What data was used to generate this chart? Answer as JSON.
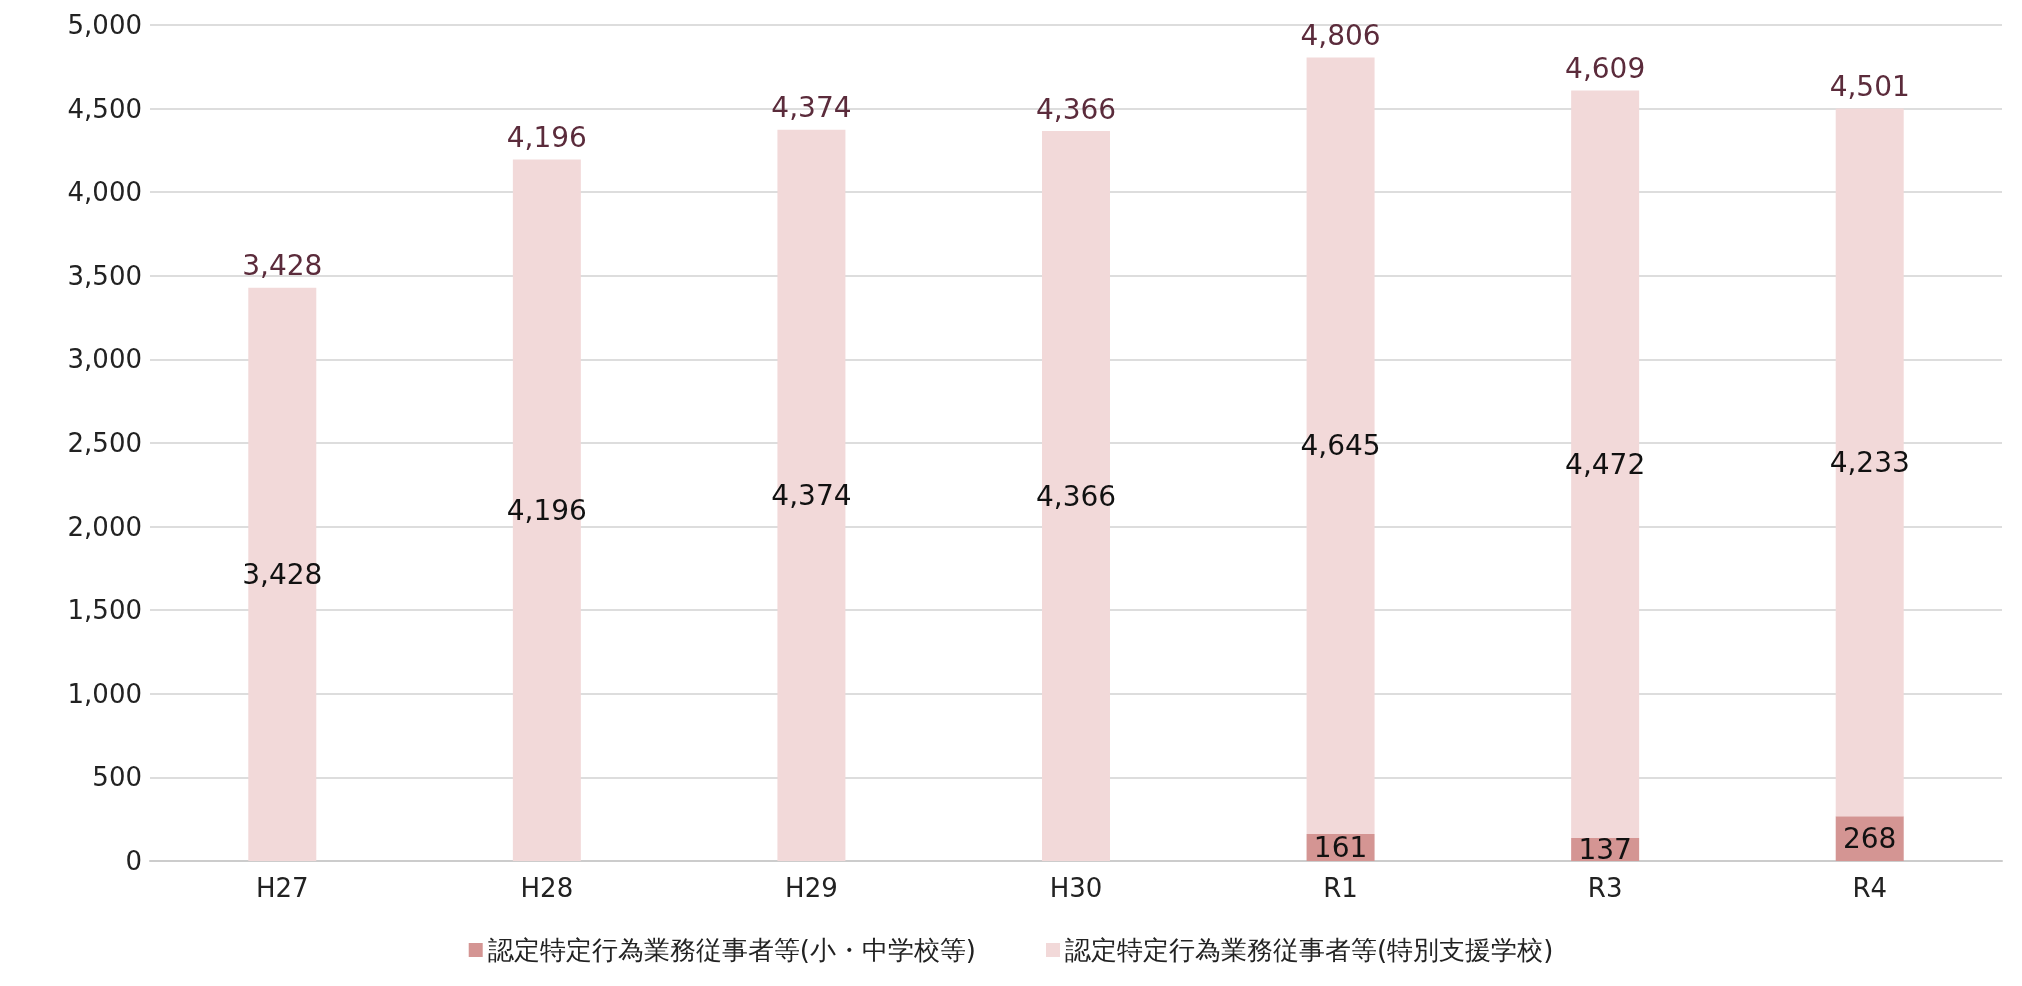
{
  "chart_data": {
    "type": "bar",
    "stacked": true,
    "categories": [
      "H27",
      "H28",
      "H29",
      "H30",
      "R1",
      "R3",
      "R4"
    ],
    "series": [
      {
        "name": "認定特定行為業務従事者等(小・中学校等)",
        "color": "#d49593",
        "values": [
          null,
          null,
          null,
          null,
          161,
          137,
          268
        ],
        "value_labels": [
          null,
          null,
          null,
          null,
          "161",
          "137",
          "268"
        ]
      },
      {
        "name": "認定特定行為業務従事者等(特別支援学校)",
        "color": "#f2d9d9",
        "values": [
          3428,
          4196,
          4374,
          4366,
          4645,
          4472,
          4233
        ],
        "value_labels": [
          "3,428",
          "4,196",
          "4,374",
          "4,366",
          "4,645",
          "4,472",
          "4,233"
        ]
      }
    ],
    "totals": [
      "3,428",
      "4,196",
      "4,374",
      "4,366",
      "4,806",
      "4,609",
      "4,501"
    ],
    "ylim": [
      0,
      5000
    ],
    "yticks": [
      0,
      500,
      {
        "value": 1000,
        "label": "1,000"
      },
      {
        "value": 1500,
        "label": "1,500"
      },
      {
        "value": 2000,
        "label": "2,000"
      },
      {
        "value": 2500,
        "label": "2,500"
      },
      {
        "value": 3000,
        "label": "3,000"
      },
      {
        "value": 3500,
        "label": "3,500"
      },
      {
        "value": 4000,
        "label": "4,000"
      },
      {
        "value": 4500,
        "label": "4,500"
      },
      {
        "value": 5000,
        "label": "5,000"
      }
    ],
    "grid": "y",
    "legend": "bottom"
  }
}
